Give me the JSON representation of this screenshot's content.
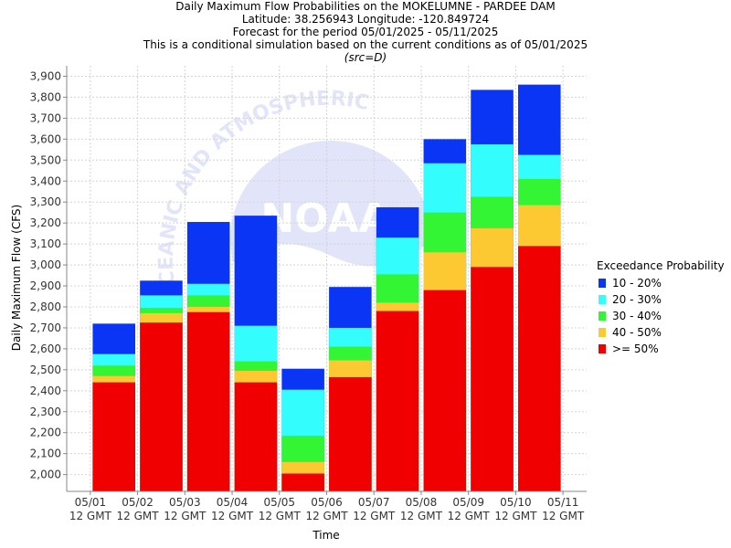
{
  "titles": {
    "line1": "Daily Maximum Flow Probabilities on the MOKELUMNE - PARDEE DAM",
    "line2": "Latitude: 38.256943 Longitude: -120.849724",
    "line3": "Forecast for the period 05/01/2025 - 05/11/2025",
    "line4": "This is a conditional simulation based on the current conditions as of 05/01/2025",
    "src": "(src=D)"
  },
  "watermark": {
    "text": "NOAA",
    "arc_text": "OCEANIC AND ATMOSPHERIC"
  },
  "legend": {
    "title": "Exceedance Probability",
    "items": [
      {
        "label": "10 - 20%",
        "color": "#0b35f5"
      },
      {
        "label": "20 - 30%",
        "color": "#33fdfd"
      },
      {
        "label": "30 - 40%",
        "color": "#33f533"
      },
      {
        "label": "40 - 50%",
        "color": "#fdc933"
      },
      {
        "label": ">= 50%",
        "color": "#f00000"
      }
    ]
  },
  "chart_data": {
    "type": "bar",
    "stacked": true,
    "xlabel": "Time",
    "ylabel": "Daily Maximum Flow (CFS)",
    "ylim": [
      1920,
      3950
    ],
    "yticks": [
      2000,
      2100,
      2200,
      2300,
      2400,
      2500,
      2600,
      2700,
      2800,
      2900,
      3000,
      3100,
      3200,
      3300,
      3400,
      3500,
      3600,
      3700,
      3800,
      3900
    ],
    "ytick_labels": [
      "2,000",
      "2,100",
      "2,200",
      "2,300",
      "2,400",
      "2,500",
      "2,600",
      "2,700",
      "2,800",
      "2,900",
      "3,000",
      "3,100",
      "3,200",
      "3,300",
      "3,400",
      "3,500",
      "3,600",
      "3,700",
      "3,800",
      "3,900"
    ],
    "xticks": [
      {
        "date": "05/01",
        "time": "12 GMT"
      },
      {
        "date": "05/02",
        "time": "12 GMT"
      },
      {
        "date": "05/03",
        "time": "12 GMT"
      },
      {
        "date": "05/04",
        "time": "12 GMT"
      },
      {
        "date": "05/05",
        "time": "12 GMT"
      },
      {
        "date": "05/06",
        "time": "12 GMT"
      },
      {
        "date": "05/07",
        "time": "12 GMT"
      },
      {
        "date": "05/08",
        "time": "12 GMT"
      },
      {
        "date": "05/09",
        "time": "12 GMT"
      },
      {
        "date": "05/10",
        "time": "12 GMT"
      },
      {
        "date": "05/11",
        "time": "12 GMT"
      }
    ],
    "grid": true,
    "legend_position": "right",
    "bars": [
      {
        "date": "05/01",
        "ge50": 2440,
        "p40_50": 2470,
        "p30_40": 2520,
        "p20_30": 2575,
        "p10_20": 2720
      },
      {
        "date": "05/02",
        "ge50": 2725,
        "p40_50": 2770,
        "p30_40": 2795,
        "p20_30": 2855,
        "p10_20": 2925
      },
      {
        "date": "05/03",
        "ge50": 2775,
        "p40_50": 2800,
        "p30_40": 2855,
        "p20_30": 2910,
        "p10_20": 3205
      },
      {
        "date": "05/04",
        "ge50": 2440,
        "p40_50": 2495,
        "p30_40": 2540,
        "p20_30": 2710,
        "p10_20": 3235
      },
      {
        "date": "05/05",
        "ge50": 2005,
        "p40_50": 2060,
        "p30_40": 2185,
        "p20_30": 2405,
        "p10_20": 2505
      },
      {
        "date": "05/06",
        "ge50": 2465,
        "p40_50": 2545,
        "p30_40": 2610,
        "p20_30": 2700,
        "p10_20": 2895
      },
      {
        "date": "05/07",
        "ge50": 2780,
        "p40_50": 2820,
        "p30_40": 2955,
        "p20_30": 3130,
        "p10_20": 3275
      },
      {
        "date": "05/08",
        "ge50": 2880,
        "p40_50": 3060,
        "p30_40": 3250,
        "p20_30": 3485,
        "p10_20": 3600
      },
      {
        "date": "05/09",
        "ge50": 2990,
        "p40_50": 3175,
        "p30_40": 3325,
        "p20_30": 3575,
        "p10_20": 3835
      },
      {
        "date": "05/10",
        "ge50": 3090,
        "p40_50": 3285,
        "p30_40": 3410,
        "p20_30": 3525,
        "p10_20": 3860
      }
    ]
  }
}
